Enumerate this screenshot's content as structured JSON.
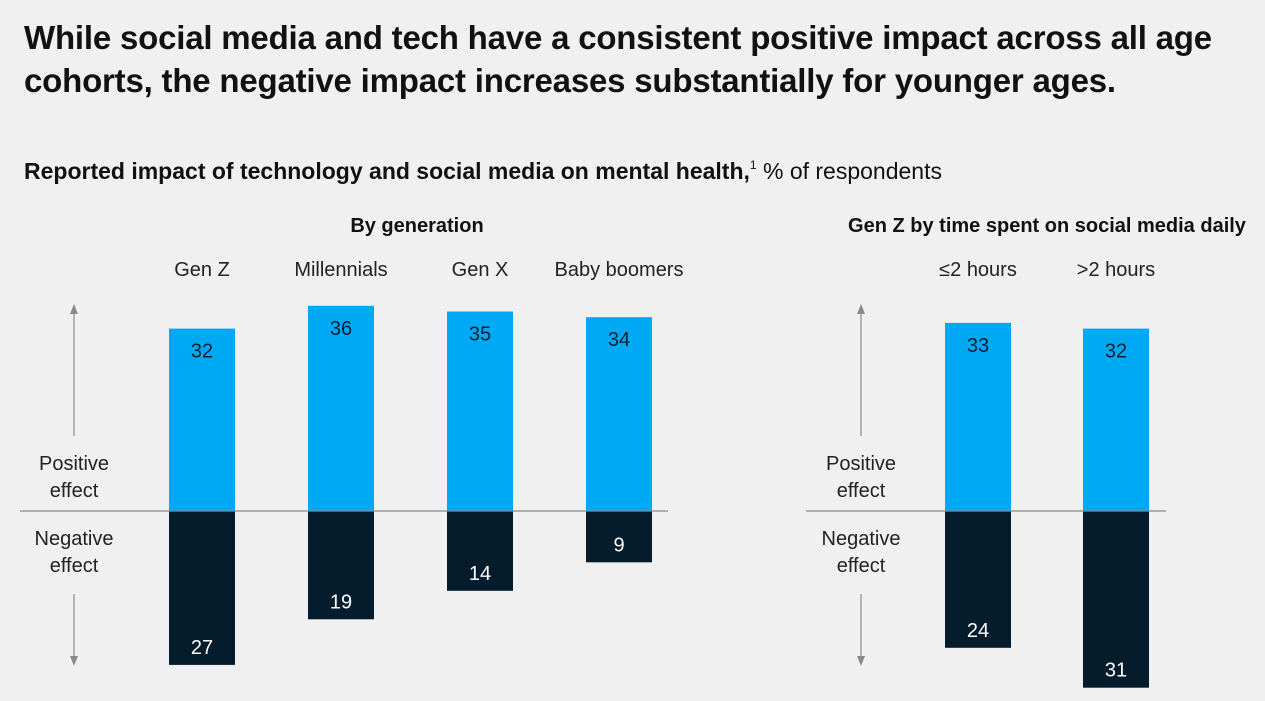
{
  "headline": "While social media and tech have a consistent positive impact across all age cohorts, the negative impact increases substantially for younger ages.",
  "subtitle": {
    "bold": "Reported impact of technology and social media on mental health,",
    "footnote": "1",
    "rest": " % of respondents"
  },
  "colors": {
    "positive": "#00a9f4",
    "negative": "#051c2c",
    "axis": "#8a8a8a",
    "background": "#f0f0f0"
  },
  "chart_data": [
    {
      "type": "bar",
      "title": "By generation",
      "categories": [
        "Gen Z",
        "Millennials",
        "Gen X",
        "Baby boomers"
      ],
      "series": [
        {
          "name": "Positive effect",
          "values": [
            32,
            36,
            35,
            34
          ]
        },
        {
          "name": "Negative effect",
          "values": [
            27,
            19,
            14,
            9
          ]
        }
      ],
      "axis_labels": {
        "positive": [
          "Positive",
          "effect"
        ],
        "negative": [
          "Negative",
          "effect"
        ]
      }
    },
    {
      "type": "bar",
      "title": "Gen Z by time spent on social media daily",
      "categories": [
        "≤2 hours",
        ">2 hours"
      ],
      "series": [
        {
          "name": "Positive effect",
          "values": [
            33,
            32
          ]
        },
        {
          "name": "Negative effect",
          "values": [
            24,
            31
          ]
        }
      ],
      "axis_labels": {
        "positive": [
          "Positive",
          "effect"
        ],
        "negative": [
          "Negative",
          "effect"
        ]
      }
    }
  ]
}
